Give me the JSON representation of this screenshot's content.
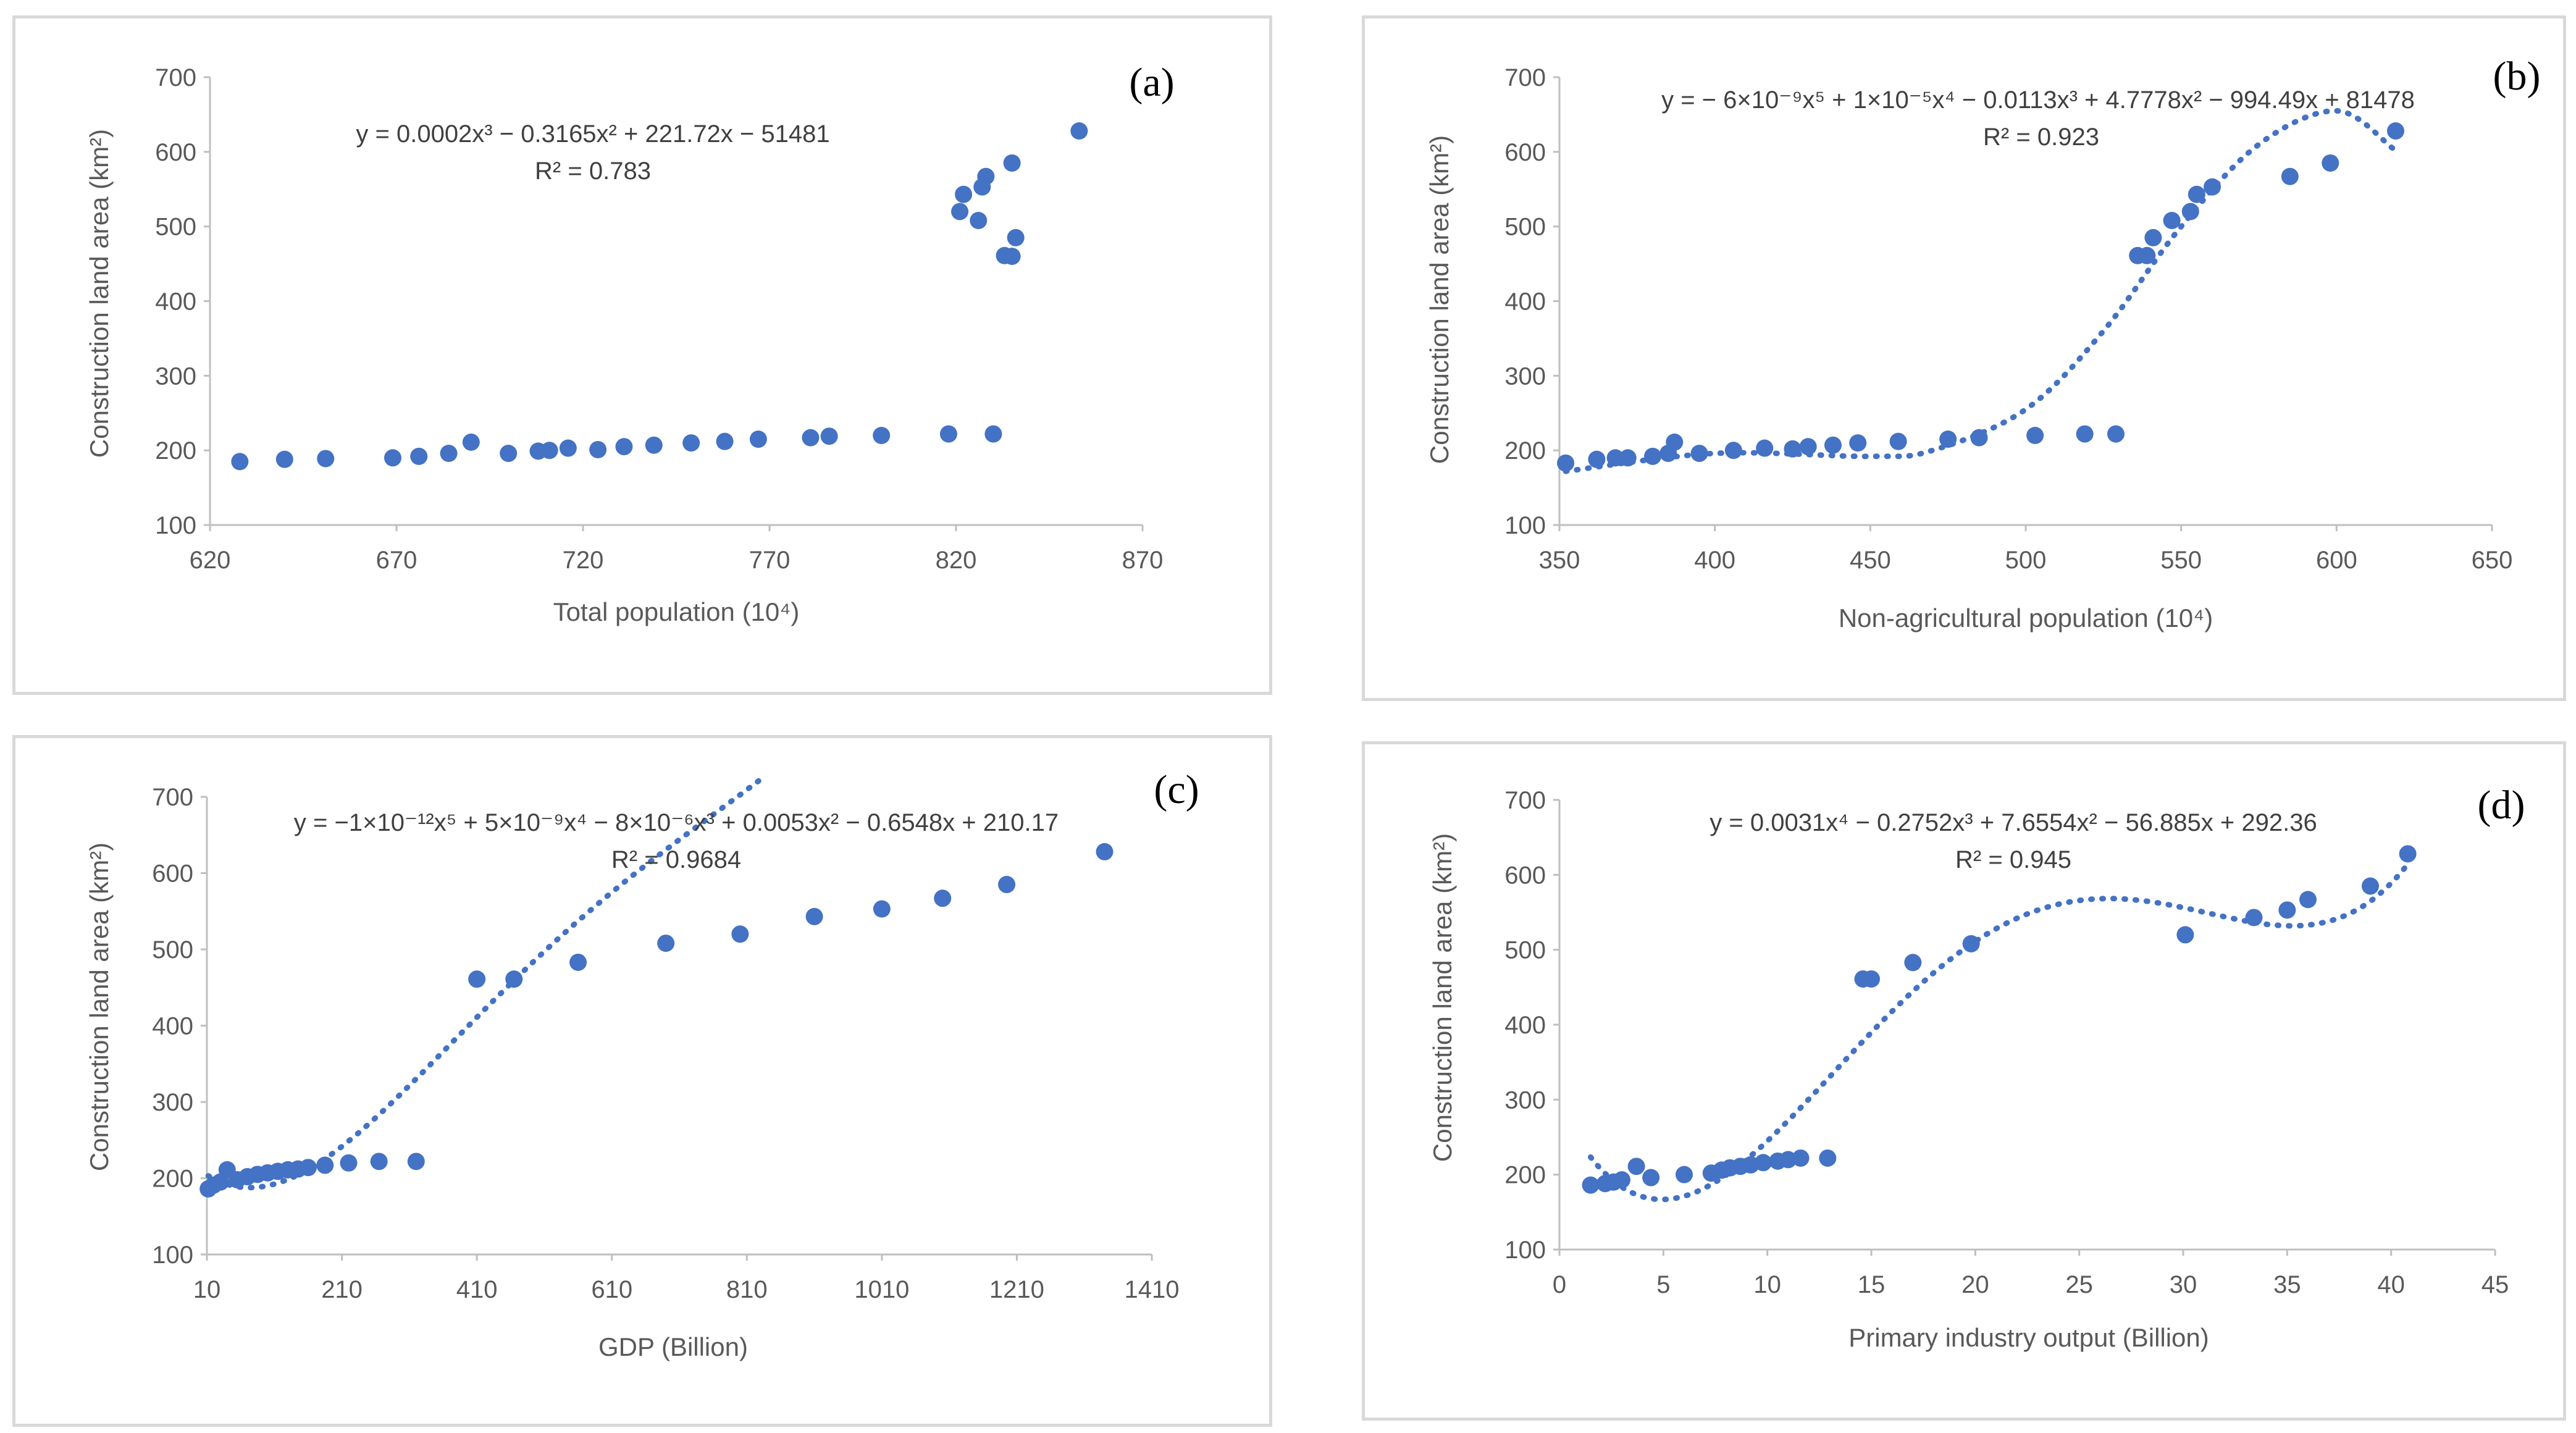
{
  "colors": {
    "marker": "#4472c4",
    "axis": "#bfbfbf",
    "text": "#595959"
  },
  "charts": [
    {
      "panel_label": "(a)",
      "equation": "y = 0.0002x³ − 0.3165x² + 221.72x − 51481",
      "r2": "R² = 0.783",
      "xlabel": "Total population (10⁴)",
      "ylabel": "Construction land area (km²)",
      "x_ticks": [
        "620",
        "670",
        "720",
        "770",
        "820",
        "870"
      ],
      "y_ticks": [
        "100",
        "200",
        "300",
        "400",
        "500",
        "600",
        "700"
      ]
    },
    {
      "panel_label": "(b)",
      "equation": "y = − 6×10⁻⁹x⁵ + 1×10⁻⁵x⁴ − 0.0113x³ + 4.7778x² − 994.49x + 81478",
      "r2": "R² = 0.923",
      "xlabel": "Non-agricultural population (10⁴)",
      "ylabel": "Construction land area (km²)",
      "x_ticks": [
        "350",
        "400",
        "450",
        "500",
        "550",
        "600",
        "650"
      ],
      "y_ticks": [
        "100",
        "200",
        "300",
        "400",
        "500",
        "600",
        "700"
      ]
    },
    {
      "panel_label": "(c)",
      "equation": "y = −1×10⁻¹²x⁵ + 5×10⁻⁹x⁴ − 8×10⁻⁶x³ + 0.0053x² − 0.6548x + 210.17",
      "r2": "R² = 0.9684",
      "xlabel": "GDP (Billion)",
      "ylabel": "Construction land area (km²)",
      "x_ticks": [
        "10",
        "210",
        "410",
        "610",
        "810",
        "1010",
        "1210",
        "1410"
      ],
      "y_ticks": [
        "100",
        "200",
        "300",
        "400",
        "500",
        "600",
        "700"
      ]
    },
    {
      "panel_label": "(d)",
      "equation": "y = 0.0031x⁴ − 0.2752x³ + 7.6554x² − 56.885x + 292.36",
      "r2": "R² = 0.945",
      "xlabel": "Primary industry output (Billion)",
      "ylabel": "Construction land area (km²)",
      "x_ticks": [
        "0",
        "5",
        "10",
        "15",
        "20",
        "25",
        "30",
        "35",
        "40",
        "45"
      ],
      "y_ticks": [
        "100",
        "200",
        "300",
        "400",
        "500",
        "600",
        "700"
      ]
    }
  ],
  "chart_data": [
    {
      "type": "scatter",
      "xlim": [
        620,
        870
      ],
      "ylim": [
        100,
        700
      ],
      "points": [
        [
          628,
          185
        ],
        [
          640,
          188
        ],
        [
          651,
          189
        ],
        [
          669,
          190
        ],
        [
          676,
          192
        ],
        [
          684,
          196
        ],
        [
          690,
          211
        ],
        [
          700,
          196
        ],
        [
          708,
          199
        ],
        [
          711,
          200
        ],
        [
          716,
          203
        ],
        [
          724,
          201
        ],
        [
          731,
          205
        ],
        [
          739,
          207
        ],
        [
          749,
          210
        ],
        [
          758,
          212
        ],
        [
          767,
          215
        ],
        [
          781,
          217
        ],
        [
          786,
          219
        ],
        [
          800,
          220
        ],
        [
          818,
          222
        ],
        [
          821,
          520
        ],
        [
          822,
          543
        ],
        [
          826,
          508
        ],
        [
          827,
          553
        ],
        [
          828,
          567
        ],
        [
          830,
          222
        ],
        [
          833,
          461
        ],
        [
          835,
          585
        ],
        [
          835,
          460
        ],
        [
          836,
          485
        ],
        [
          853,
          628
        ]
      ],
      "trendline": {
        "type": "polynomial",
        "order": 3,
        "coefficients": [
          0.0002,
          -0.3165,
          221.72,
          -51481
        ]
      }
    },
    {
      "type": "scatter",
      "xlim": [
        350,
        650
      ],
      "ylim": [
        100,
        700
      ],
      "points": [
        [
          352,
          183
        ],
        [
          362,
          188
        ],
        [
          368,
          190
        ],
        [
          372,
          190
        ],
        [
          380,
          192
        ],
        [
          385,
          196
        ],
        [
          387,
          211
        ],
        [
          395,
          196
        ],
        [
          406,
          200
        ],
        [
          416,
          203
        ],
        [
          425,
          202
        ],
        [
          430,
          205
        ],
        [
          438,
          207
        ],
        [
          446,
          210
        ],
        [
          459,
          212
        ],
        [
          475,
          215
        ],
        [
          485,
          217
        ],
        [
          503,
          220
        ],
        [
          519,
          222
        ],
        [
          529,
          222
        ],
        [
          536,
          461
        ],
        [
          539,
          461
        ],
        [
          541,
          485
        ],
        [
          547,
          508
        ],
        [
          553,
          520
        ],
        [
          555,
          543
        ],
        [
          560,
          553
        ],
        [
          585,
          567
        ],
        [
          598,
          585
        ],
        [
          619,
          628
        ]
      ],
      "trendline": {
        "type": "polynomial",
        "order": 5,
        "smoothed_through": [
          [
            352,
            172
          ],
          [
            400,
            196
          ],
          [
            450,
            192
          ],
          [
            470,
            200
          ],
          [
            500,
            255
          ],
          [
            525,
            360
          ],
          [
            550,
            500
          ],
          [
            575,
            610
          ],
          [
            600,
            655
          ],
          [
            618,
            605
          ]
        ]
      }
    },
    {
      "type": "scatter",
      "xlim": [
        10,
        1410
      ],
      "ylim": [
        100,
        700
      ],
      "points": [
        [
          12,
          186
        ],
        [
          20,
          191
        ],
        [
          30,
          195
        ],
        [
          40,
          211
        ],
        [
          55,
          198
        ],
        [
          70,
          202
        ],
        [
          85,
          205
        ],
        [
          100,
          207
        ],
        [
          115,
          209
        ],
        [
          130,
          211
        ],
        [
          145,
          212
        ],
        [
          160,
          214
        ],
        [
          185,
          217
        ],
        [
          220,
          220
        ],
        [
          265,
          222
        ],
        [
          320,
          222
        ],
        [
          410,
          461
        ],
        [
          465,
          461
        ],
        [
          560,
          483
        ],
        [
          690,
          508
        ],
        [
          800,
          520
        ],
        [
          910,
          543
        ],
        [
          1010,
          553
        ],
        [
          1100,
          567
        ],
        [
          1195,
          585
        ],
        [
          1340,
          628
        ]
      ],
      "trendline": {
        "type": "polynomial",
        "order": 5,
        "coefficients": [
          -1e-12,
          5e-09,
          -8e-06,
          0.0053,
          -0.6548,
          210.17
        ]
      }
    },
    {
      "type": "scatter",
      "xlim": [
        0,
        45
      ],
      "ylim": [
        100,
        700
      ],
      "points": [
        [
          1.5,
          186
        ],
        [
          2.2,
          188
        ],
        [
          2.6,
          190
        ],
        [
          3.0,
          193
        ],
        [
          3.7,
          211
        ],
        [
          4.4,
          196
        ],
        [
          6.0,
          200
        ],
        [
          7.3,
          202
        ],
        [
          7.8,
          206
        ],
        [
          8.2,
          209
        ],
        [
          8.7,
          211
        ],
        [
          9.2,
          213
        ],
        [
          9.8,
          216
        ],
        [
          10.5,
          218
        ],
        [
          11.0,
          220
        ],
        [
          11.6,
          222
        ],
        [
          12.9,
          222
        ],
        [
          14.6,
          461
        ],
        [
          15.0,
          461
        ],
        [
          17.0,
          483
        ],
        [
          19.8,
          508
        ],
        [
          30.1,
          520
        ],
        [
          33.4,
          543
        ],
        [
          35.0,
          553
        ],
        [
          36.0,
          567
        ],
        [
          39.0,
          585
        ],
        [
          40.8,
          628
        ]
      ],
      "trendline": {
        "type": "polynomial",
        "order": 4,
        "coefficients": [
          0.0031,
          -0.2752,
          7.6554,
          -56.885,
          292.36
        ]
      }
    }
  ]
}
